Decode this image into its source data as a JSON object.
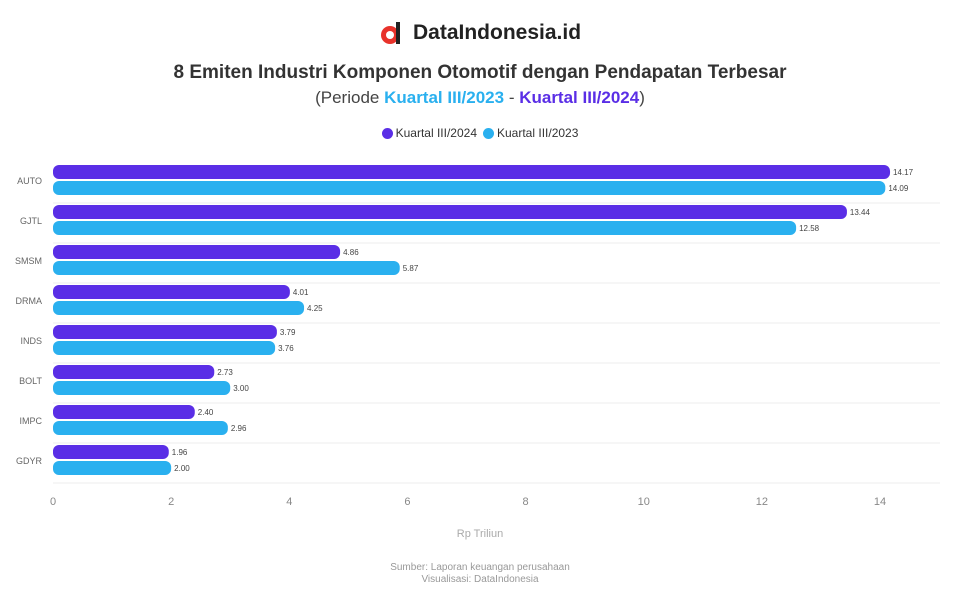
{
  "brand": {
    "name": "DataIndonesia.id"
  },
  "title": "8 Emiten Industri Komponen Otomotif dengan Pendapatan Terbesar",
  "subtitle": {
    "prefix": "(Periode ",
    "from": "Kuartal III/2023",
    "sep": " - ",
    "to": "Kuartal III/2024",
    "suffix": ")"
  },
  "colors": {
    "q3_2024": "#5a2ee6",
    "q3_2023": "#2ab0ef"
  },
  "footer": {
    "source": "Sumber: Laporan keuangan perusahaan",
    "viz": "Visualisasi: DataIndonesia"
  },
  "chart_data": {
    "type": "bar",
    "orientation": "horizontal",
    "categories": [
      "AUTO",
      "GJTL",
      "SMSM",
      "DRMA",
      "INDS",
      "BOLT",
      "IMPC",
      "GDYR"
    ],
    "series": [
      {
        "name": "Kuartal III/2024",
        "values": [
          14.17,
          13.44,
          4.86,
          4.01,
          3.79,
          2.73,
          2.4,
          1.96
        ]
      },
      {
        "name": "Kuartal III/2023",
        "values": [
          14.09,
          12.58,
          5.87,
          4.25,
          3.76,
          3.0,
          2.96,
          2.0
        ]
      }
    ],
    "xlabel": "Rp Triliun",
    "xlim": [
      0,
      14.5
    ],
    "xticks": [
      0,
      2,
      4,
      6,
      8,
      10,
      12,
      14
    ],
    "grid": true,
    "legend": "top"
  }
}
